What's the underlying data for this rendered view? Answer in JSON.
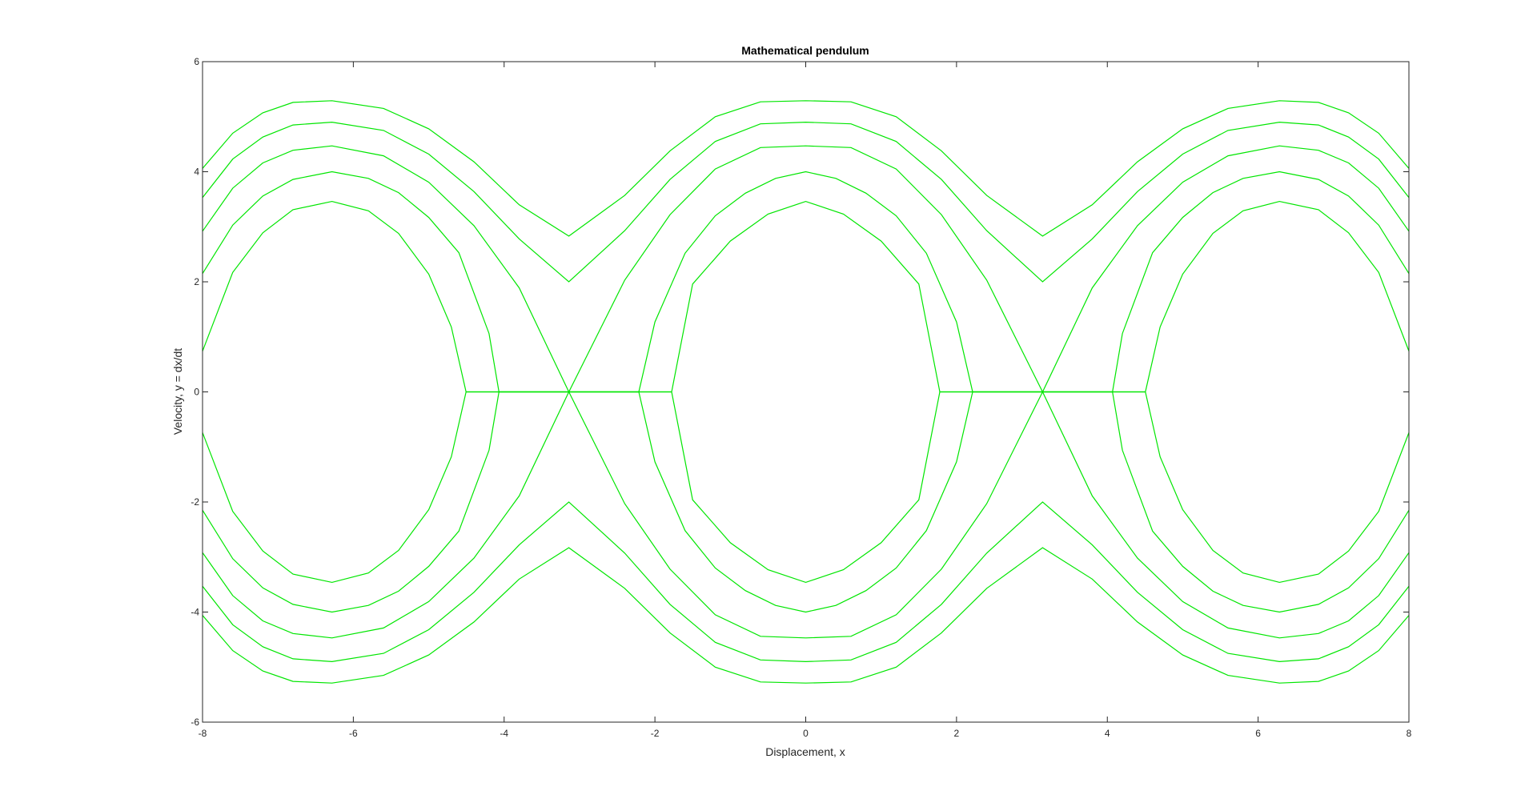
{
  "chart_data": {
    "type": "line",
    "title": "Mathematical pendulum",
    "xlabel": "Displacement, x",
    "ylabel": "Velocity, y = dx/dt",
    "xlim": [
      -8,
      8
    ],
    "ylim": [
      -6,
      6
    ],
    "xticks": [
      -8,
      -6,
      -4,
      -2,
      0,
      2,
      4,
      6,
      8
    ],
    "yticks": [
      -6,
      -4,
      -2,
      0,
      2,
      4,
      6
    ],
    "grid": false,
    "box": true,
    "line_color": "#00e600",
    "energy_levels": [
      0.5,
      1.0,
      1.5,
      2.0,
      2.5
    ],
    "series": [
      {
        "level": 0.5,
        "x": [
          -8.0,
          -7.6,
          -7.2,
          -6.8,
          -6.283,
          -5.8,
          -5.4,
          -5.0,
          -4.7,
          -4.505,
          -4.0,
          -3.6,
          -3.2,
          -2.8,
          -2.4,
          -2.0,
          -1.778,
          -1.5,
          -1.0,
          -0.5,
          0.0,
          0.5,
          1.0,
          1.5,
          1.778,
          2.0,
          2.4,
          2.8,
          3.2,
          3.6,
          4.0,
          4.505,
          4.7,
          5.0,
          5.4,
          5.8,
          6.283,
          6.8,
          7.2,
          7.6,
          8.0
        ],
        "y": [
          0.74,
          2.17,
          2.89,
          3.31,
          3.46,
          3.29,
          2.88,
          2.14,
          1.18,
          0.0,
          0.0,
          0.0,
          0.0,
          0.0,
          0.0,
          0.0,
          0.0,
          1.96,
          2.74,
          3.23,
          3.46,
          3.23,
          2.74,
          1.96,
          0.0,
          0.0,
          0.0,
          0.0,
          0.0,
          0.0,
          0.0,
          0.0,
          1.18,
          2.14,
          2.88,
          3.29,
          3.46,
          3.31,
          2.89,
          2.17,
          0.74
        ]
      },
      {
        "level": 1.0,
        "x": [
          -8.0,
          -7.6,
          -7.2,
          -6.8,
          -6.283,
          -5.8,
          -5.4,
          -5.0,
          -4.6,
          -4.2,
          -4.069,
          -3.6,
          -3.2,
          -2.8,
          -2.4,
          -2.214,
          -2.0,
          -1.6,
          -1.2,
          -0.8,
          -0.4,
          0.0,
          0.4,
          0.8,
          1.2,
          1.6,
          2.0,
          2.214,
          2.4,
          2.8,
          3.2,
          3.6,
          4.069,
          4.2,
          4.6,
          5.0,
          5.4,
          5.8,
          6.283,
          6.8,
          7.2,
          7.6,
          8.0
        ],
        "y": [
          2.15,
          3.03,
          3.56,
          3.86,
          4.0,
          3.88,
          3.62,
          3.17,
          2.53,
          1.06,
          0.0,
          0.0,
          0.0,
          0.0,
          0.0,
          0.0,
          1.27,
          2.52,
          3.2,
          3.61,
          3.88,
          4.0,
          3.88,
          3.61,
          3.2,
          2.52,
          1.27,
          0.0,
          0.0,
          0.0,
          0.0,
          0.0,
          0.0,
          1.06,
          2.53,
          3.17,
          3.62,
          3.88,
          4.0,
          3.86,
          3.56,
          3.03,
          2.15
        ]
      },
      {
        "level": 1.5,
        "x": [
          -8.0,
          -7.6,
          -7.2,
          -6.8,
          -6.283,
          -5.6,
          -5.0,
          -4.4,
          -3.8,
          -3.142,
          -2.4,
          -1.8,
          -1.2,
          -0.6,
          0.0,
          0.6,
          1.2,
          1.8,
          2.4,
          3.142,
          3.8,
          4.4,
          5.0,
          5.6,
          6.283,
          6.8,
          7.2,
          7.6,
          8.0
        ],
        "y": [
          2.92,
          3.7,
          4.16,
          4.39,
          4.47,
          4.29,
          3.81,
          3.02,
          1.89,
          0.0,
          2.03,
          3.22,
          4.05,
          4.44,
          4.47,
          4.44,
          4.05,
          3.22,
          2.03,
          0.0,
          1.89,
          3.02,
          3.81,
          4.29,
          4.47,
          4.39,
          4.16,
          3.7,
          2.92
        ]
      },
      {
        "level": 2.0,
        "x": [
          -8.0,
          -7.6,
          -7.2,
          -6.8,
          -6.283,
          -5.6,
          -5.0,
          -4.4,
          -3.8,
          -3.142,
          -2.4,
          -1.8,
          -1.2,
          -0.6,
          0.0,
          0.6,
          1.2,
          1.8,
          2.4,
          3.142,
          3.8,
          4.4,
          5.0,
          5.6,
          6.283,
          6.8,
          7.2,
          7.6,
          8.0
        ],
        "y": [
          3.53,
          4.23,
          4.63,
          4.85,
          4.9,
          4.75,
          4.32,
          3.64,
          2.78,
          2.0,
          2.93,
          3.86,
          4.55,
          4.87,
          4.9,
          4.87,
          4.55,
          3.86,
          2.93,
          2.0,
          2.78,
          3.64,
          4.32,
          4.75,
          4.9,
          4.85,
          4.63,
          4.23,
          3.53
        ]
      },
      {
        "level": 2.5,
        "x": [
          -8.0,
          -7.6,
          -7.2,
          -6.8,
          -6.283,
          -5.6,
          -5.0,
          -4.4,
          -3.8,
          -3.142,
          -2.4,
          -1.8,
          -1.2,
          -0.6,
          0.0,
          0.6,
          1.2,
          1.8,
          2.4,
          3.142,
          3.8,
          4.4,
          5.0,
          5.6,
          6.283,
          6.8,
          7.2,
          7.6,
          8.0
        ],
        "y": [
          4.06,
          4.7,
          5.07,
          5.26,
          5.29,
          5.15,
          4.78,
          4.18,
          3.4,
          2.83,
          3.57,
          4.38,
          5.0,
          5.27,
          5.29,
          5.27,
          5.0,
          4.38,
          3.57,
          2.83,
          3.4,
          4.18,
          4.78,
          5.15,
          5.29,
          5.26,
          5.07,
          4.7,
          4.06
        ]
      }
    ]
  }
}
